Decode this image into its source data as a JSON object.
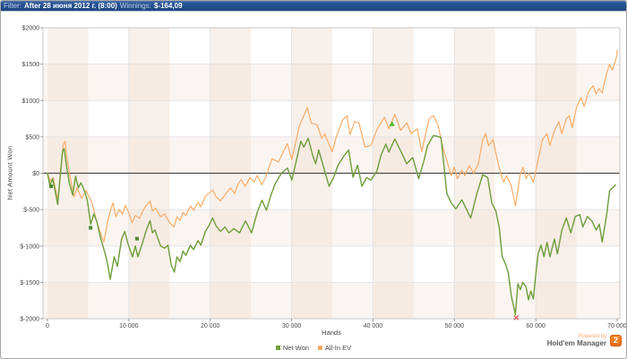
{
  "title_bar": {
    "filter_label": "Filter:",
    "filter_value": "After 28 июня 2012 г. (8:00)",
    "winnings_label": "Winnings:",
    "winnings_value": "$-164,09"
  },
  "footer": {
    "powered_by": "Powered by",
    "brand": "Hold'em Manager",
    "badge": "2"
  },
  "colors": {
    "net_won": "#6e9d3b",
    "all_in_ev": "#f7ad68",
    "zero_line": "#4d4d4d",
    "grid": "#e3e3e3",
    "band_pink": "#f7ede6",
    "frame": "#c9c9c9",
    "marker_square": "#4c8a2a",
    "marker_triangle": "#55b82e",
    "marker_x": "#d9544f"
  },
  "chart_data": {
    "type": "line",
    "title": "",
    "xlabel": "Hands",
    "ylabel": "Net Amount Won",
    "xlim": [
      0,
      70000
    ],
    "ylim": [
      -2000,
      2000
    ],
    "grid": true,
    "legend_position": "bottom",
    "x_ticks": [
      0,
      10000,
      20000,
      30000,
      40000,
      50000,
      60000,
      70000
    ],
    "x_tick_labels": [
      "0",
      "10 000",
      "20 000",
      "30 000",
      "40 000",
      "50 000",
      "60 000",
      "70 000"
    ],
    "y_ticks": [
      2000,
      1500,
      1000,
      500,
      0,
      -500,
      -1000,
      -1500,
      -2000
    ],
    "y_tick_labels": [
      "$2000",
      "$1500",
      "$1000",
      "$500",
      "$0",
      "$-500",
      "$-1000",
      "$-1500",
      "$-2000"
    ],
    "series": [
      {
        "name": "Net Won",
        "color": "#6e9d3b",
        "points": [
          [
            0,
            0
          ],
          [
            300,
            -170
          ],
          [
            650,
            -80
          ],
          [
            1000,
            -280
          ],
          [
            1250,
            -430
          ],
          [
            1550,
            -60
          ],
          [
            1850,
            300
          ],
          [
            2050,
            340
          ],
          [
            2350,
            90
          ],
          [
            2700,
            -140
          ],
          [
            3100,
            -300
          ],
          [
            3450,
            -40
          ],
          [
            3800,
            -200
          ],
          [
            4100,
            -130
          ],
          [
            4500,
            -230
          ],
          [
            4900,
            -370
          ],
          [
            5300,
            -700
          ],
          [
            5700,
            -560
          ],
          [
            6050,
            -660
          ],
          [
            6550,
            -900
          ],
          [
            7100,
            -1110
          ],
          [
            7400,
            -1250
          ],
          [
            7700,
            -1460
          ],
          [
            8200,
            -1150
          ],
          [
            8600,
            -1280
          ],
          [
            9100,
            -905
          ],
          [
            9500,
            -800
          ],
          [
            9900,
            -970
          ],
          [
            10450,
            -1150
          ],
          [
            10800,
            -1000
          ],
          [
            11100,
            -1150
          ],
          [
            11700,
            -950
          ],
          [
            12100,
            -800
          ],
          [
            12600,
            -650
          ],
          [
            12900,
            -820
          ],
          [
            13200,
            -780
          ],
          [
            13900,
            -1000
          ],
          [
            14400,
            -1030
          ],
          [
            14800,
            -990
          ],
          [
            15200,
            -1260
          ],
          [
            15600,
            -1360
          ],
          [
            15900,
            -1150
          ],
          [
            16300,
            -1215
          ],
          [
            16650,
            -1070
          ],
          [
            17000,
            -1130
          ],
          [
            17550,
            -990
          ],
          [
            17950,
            -1050
          ],
          [
            18500,
            -925
          ],
          [
            18850,
            -990
          ],
          [
            19400,
            -800
          ],
          [
            19750,
            -740
          ],
          [
            20300,
            -615
          ],
          [
            20700,
            -720
          ],
          [
            21250,
            -800
          ],
          [
            21800,
            -740
          ],
          [
            22300,
            -820
          ],
          [
            22900,
            -760
          ],
          [
            23600,
            -820
          ],
          [
            24340,
            -655
          ],
          [
            25080,
            -820
          ],
          [
            25800,
            -530
          ],
          [
            26360,
            -370
          ],
          [
            26900,
            -510
          ],
          [
            27460,
            -300
          ],
          [
            28000,
            -140
          ],
          [
            28750,
            0
          ],
          [
            29500,
            70
          ],
          [
            30030,
            -95
          ],
          [
            30600,
            180
          ],
          [
            31130,
            440
          ],
          [
            31500,
            360
          ],
          [
            32040,
            480
          ],
          [
            32600,
            240
          ],
          [
            32960,
            130
          ],
          [
            33330,
            320
          ],
          [
            34060,
            30
          ],
          [
            34600,
            -180
          ],
          [
            35160,
            -55
          ],
          [
            35700,
            110
          ],
          [
            36440,
            240
          ],
          [
            37000,
            320
          ],
          [
            37540,
            -55
          ],
          [
            38100,
            110
          ],
          [
            38640,
            -180
          ],
          [
            39200,
            -60
          ],
          [
            39740,
            -95
          ],
          [
            40480,
            30
          ],
          [
            41000,
            255
          ],
          [
            41580,
            400
          ],
          [
            41950,
            290
          ],
          [
            42680,
            470
          ],
          [
            43410,
            305
          ],
          [
            44150,
            130
          ],
          [
            44880,
            215
          ],
          [
            45610,
            -75
          ],
          [
            46200,
            150
          ],
          [
            46710,
            380
          ],
          [
            47430,
            520
          ],
          [
            48350,
            495
          ],
          [
            49080,
            -280
          ],
          [
            49630,
            -410
          ],
          [
            50180,
            -490
          ],
          [
            50910,
            -365
          ],
          [
            51460,
            -490
          ],
          [
            52010,
            -615
          ],
          [
            52750,
            -285
          ],
          [
            53480,
            -20
          ],
          [
            54100,
            -60
          ],
          [
            54600,
            -410
          ],
          [
            55100,
            -520
          ],
          [
            55510,
            -740
          ],
          [
            55880,
            -1150
          ],
          [
            56250,
            -1240
          ],
          [
            56610,
            -1360
          ],
          [
            57000,
            -1690
          ],
          [
            57500,
            -1945
          ],
          [
            57800,
            -1520
          ],
          [
            58100,
            -1600
          ],
          [
            58400,
            -1500
          ],
          [
            58800,
            -1560
          ],
          [
            59100,
            -1740
          ],
          [
            59400,
            -1620
          ],
          [
            59700,
            -1730
          ],
          [
            60000,
            -1400
          ],
          [
            60280,
            -1110
          ],
          [
            60650,
            -990
          ],
          [
            61010,
            -1150
          ],
          [
            61380,
            -950
          ],
          [
            61750,
            -1150
          ],
          [
            62300,
            -905
          ],
          [
            62660,
            -1110
          ],
          [
            63210,
            -780
          ],
          [
            63760,
            -615
          ],
          [
            64310,
            -820
          ],
          [
            64860,
            -595
          ],
          [
            65410,
            -570
          ],
          [
            65780,
            -740
          ],
          [
            66330,
            -595
          ],
          [
            66880,
            -655
          ],
          [
            67430,
            -780
          ],
          [
            67800,
            -700
          ],
          [
            68160,
            -945
          ],
          [
            68710,
            -570
          ],
          [
            69080,
            -240
          ],
          [
            69450,
            -200
          ],
          [
            69800,
            -160
          ]
        ]
      },
      {
        "name": "All-In EV",
        "color": "#f7ad68",
        "points": [
          [
            0,
            0
          ],
          [
            300,
            -110
          ],
          [
            700,
            -60
          ],
          [
            1250,
            -370
          ],
          [
            1600,
            0
          ],
          [
            1900,
            380
          ],
          [
            2160,
            440
          ],
          [
            2400,
            200
          ],
          [
            2900,
            -120
          ],
          [
            3270,
            -325
          ],
          [
            3630,
            -200
          ],
          [
            4180,
            -345
          ],
          [
            4730,
            -240
          ],
          [
            5470,
            -405
          ],
          [
            6020,
            -655
          ],
          [
            6570,
            -840
          ],
          [
            6930,
            -945
          ],
          [
            7480,
            -615
          ],
          [
            8030,
            -405
          ],
          [
            8400,
            -600
          ],
          [
            8800,
            -500
          ],
          [
            9200,
            -560
          ],
          [
            9600,
            -440
          ],
          [
            10000,
            -550
          ],
          [
            10400,
            -680
          ],
          [
            10800,
            -580
          ],
          [
            11300,
            -620
          ],
          [
            11800,
            -500
          ],
          [
            12300,
            -420
          ],
          [
            12600,
            -380
          ],
          [
            12900,
            -520
          ],
          [
            13300,
            -480
          ],
          [
            13900,
            -600
          ],
          [
            14400,
            -560
          ],
          [
            15000,
            -680
          ],
          [
            15550,
            -740
          ],
          [
            15900,
            -600
          ],
          [
            16300,
            -650
          ],
          [
            16650,
            -540
          ],
          [
            17000,
            -580
          ],
          [
            17550,
            -450
          ],
          [
            17950,
            -510
          ],
          [
            18500,
            -400
          ],
          [
            18850,
            -460
          ],
          [
            19400,
            -320
          ],
          [
            19750,
            -280
          ],
          [
            20300,
            -230
          ],
          [
            20700,
            -320
          ],
          [
            21250,
            -380
          ],
          [
            21800,
            -300
          ],
          [
            22500,
            -200
          ],
          [
            23000,
            -280
          ],
          [
            23400,
            -150
          ],
          [
            23800,
            -90
          ],
          [
            24300,
            -180
          ],
          [
            24900,
            -60
          ],
          [
            25400,
            -120
          ],
          [
            25800,
            -30
          ],
          [
            26300,
            -160
          ],
          [
            26800,
            -60
          ],
          [
            27280,
            100
          ],
          [
            27600,
            200
          ],
          [
            28380,
            155
          ],
          [
            29000,
            300
          ],
          [
            29480,
            405
          ],
          [
            30030,
            190
          ],
          [
            30950,
            650
          ],
          [
            31930,
            905
          ],
          [
            32400,
            690
          ],
          [
            33140,
            665
          ],
          [
            33690,
            480
          ],
          [
            34060,
            540
          ],
          [
            34980,
            295
          ],
          [
            35500,
            500
          ],
          [
            36260,
            730
          ],
          [
            36810,
            790
          ],
          [
            37180,
            530
          ],
          [
            37730,
            710
          ],
          [
            38280,
            690
          ],
          [
            39010,
            360
          ],
          [
            39740,
            380
          ],
          [
            40480,
            600
          ],
          [
            41400,
            770
          ],
          [
            41950,
            610
          ],
          [
            42680,
            810
          ],
          [
            43400,
            590
          ],
          [
            44150,
            690
          ],
          [
            44700,
            545
          ],
          [
            45430,
            610
          ],
          [
            45980,
            300
          ],
          [
            46900,
            750
          ],
          [
            47430,
            790
          ],
          [
            47980,
            670
          ],
          [
            48530,
            380
          ],
          [
            49080,
            170
          ],
          [
            49630,
            -35
          ],
          [
            50000,
            85
          ],
          [
            50350,
            -75
          ],
          [
            50910,
            40
          ],
          [
            51280,
            -35
          ],
          [
            51830,
            105
          ],
          [
            52380,
            0
          ],
          [
            52930,
            125
          ],
          [
            53480,
            460
          ],
          [
            53850,
            545
          ],
          [
            54200,
            380
          ],
          [
            54760,
            460
          ],
          [
            55310,
            170
          ],
          [
            55680,
            0
          ],
          [
            56050,
            -120
          ],
          [
            56410,
            -35
          ],
          [
            56960,
            -160
          ],
          [
            57510,
            -450
          ],
          [
            58060,
            -35
          ],
          [
            58430,
            85
          ],
          [
            58800,
            -75
          ],
          [
            59160,
            0
          ],
          [
            59710,
            -120
          ],
          [
            60260,
            170
          ],
          [
            60810,
            460
          ],
          [
            61360,
            545
          ],
          [
            61730,
            380
          ],
          [
            62280,
            585
          ],
          [
            62830,
            710
          ],
          [
            63200,
            545
          ],
          [
            63750,
            750
          ],
          [
            64110,
            790
          ],
          [
            64480,
            625
          ],
          [
            65030,
            915
          ],
          [
            65580,
            1040
          ],
          [
            65950,
            915
          ],
          [
            66500,
            1125
          ],
          [
            67050,
            1205
          ],
          [
            67410,
            1085
          ],
          [
            67780,
            1165
          ],
          [
            68150,
            1105
          ],
          [
            68700,
            1370
          ],
          [
            69060,
            1495
          ],
          [
            69430,
            1415
          ],
          [
            69980,
            1620
          ],
          [
            70000,
            1690
          ]
        ]
      }
    ],
    "markers": [
      {
        "type": "square",
        "x": 450,
        "y": -180,
        "color": "#4c8a2a"
      },
      {
        "type": "square",
        "x": 5300,
        "y": -750,
        "color": "#4c8a2a"
      },
      {
        "type": "square",
        "x": 11000,
        "y": -900,
        "color": "#4c8a2a"
      },
      {
        "type": "triangle",
        "x": 42340,
        "y": 680,
        "color": "#55b82e"
      },
      {
        "type": "x",
        "x": 57600,
        "y": -1985,
        "color": "#d9544f"
      }
    ]
  }
}
